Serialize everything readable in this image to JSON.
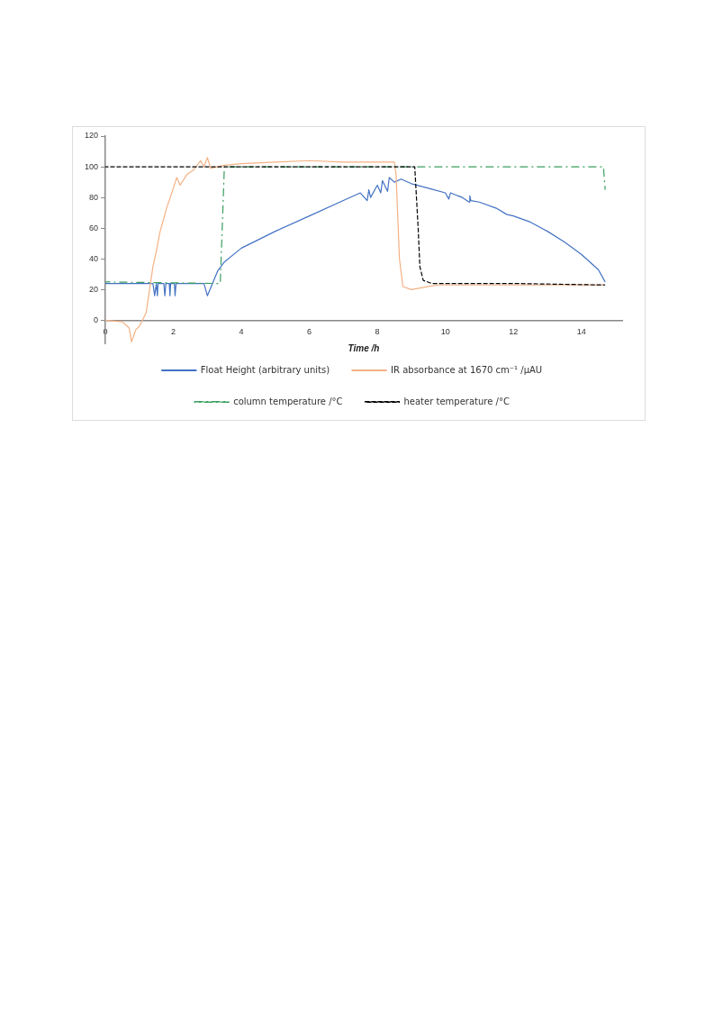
{
  "chart_data": {
    "type": "line",
    "xlabel": "Time /h",
    "xlim": [
      0,
      15.2
    ],
    "xticks": [
      0,
      2,
      4,
      6,
      8,
      10,
      12,
      14
    ],
    "ylim": [
      -15,
      120
    ],
    "yticks": [
      0,
      20,
      40,
      60,
      80,
      100,
      120
    ],
    "grid": false,
    "legend": "bottom",
    "marker": "none",
    "series": [
      {
        "name": "Float Height (arbitrary units)",
        "color": "#4472c4",
        "line_style": "solid",
        "x": [
          0,
          1.4,
          1.45,
          1.5,
          1.53,
          1.55,
          1.6,
          1.72,
          1.75,
          1.78,
          1.88,
          1.9,
          1.92,
          2.03,
          2.05,
          2.08,
          2.9,
          3.0,
          3.3,
          3.5,
          4,
          5,
          6,
          7,
          7.5,
          7.7,
          7.75,
          7.8,
          8,
          8.1,
          8.15,
          8.3,
          8.35,
          8.5,
          8.7,
          9,
          9.5,
          10,
          10.1,
          10.15,
          10.5,
          10.7,
          10.72,
          10.75,
          11,
          11.5,
          11.8,
          12,
          12.5,
          13,
          13.5,
          14,
          14.5,
          14.7
        ],
        "values": [
          24,
          24,
          16,
          24,
          16,
          24,
          24,
          24,
          16,
          24,
          24,
          16,
          24,
          24,
          16,
          24,
          24,
          16,
          32,
          38,
          47,
          58,
          68,
          78,
          83,
          78,
          85,
          80,
          88,
          83,
          91,
          84,
          93,
          90,
          92,
          89,
          86,
          83,
          79,
          83,
          80,
          77,
          81,
          78,
          77,
          73,
          69,
          68,
          64,
          58,
          51,
          43,
          33,
          25
        ]
      },
      {
        "name": "IR absorbance at 1670 cm⁻¹ /µAU",
        "color": "#f4b183",
        "line_style": "solid",
        "x": [
          0,
          0.5,
          0.7,
          0.77,
          0.9,
          1.0,
          1.2,
          1.3,
          1.4,
          1.5,
          1.6,
          1.8,
          2.0,
          2.1,
          2.2,
          2.4,
          2.6,
          2.8,
          2.9,
          3.0,
          3.1,
          3.5,
          4,
          5,
          6,
          7,
          8,
          8.5,
          8.55,
          8.65,
          8.75,
          9,
          9.5,
          9.8,
          10,
          14.7
        ],
        "values": [
          0,
          -1,
          -5,
          -14,
          -6,
          -4,
          5,
          20,
          35,
          45,
          57,
          73,
          86,
          93,
          88,
          95,
          98,
          104,
          100,
          106,
          99,
          101,
          102,
          103,
          104,
          103,
          103,
          103,
          95,
          40,
          22,
          20,
          22,
          23,
          23,
          23
        ]
      },
      {
        "name": "column temperature /°C",
        "color": "#3a9e5f",
        "line_style": "dashdot",
        "x": [
          0,
          3.3,
          3.38,
          3.5,
          14.65,
          14.7
        ],
        "values": [
          25,
          24,
          24,
          100,
          100,
          85
        ]
      },
      {
        "name": "heater temperature /°C",
        "color": "#000000",
        "line_style": "dashed",
        "x": [
          0,
          9.1,
          9.2,
          9.25,
          9.35,
          9.6,
          10,
          12,
          14.7
        ],
        "values": [
          100,
          100,
          60,
          35,
          26,
          24,
          24,
          24,
          23
        ]
      }
    ]
  }
}
